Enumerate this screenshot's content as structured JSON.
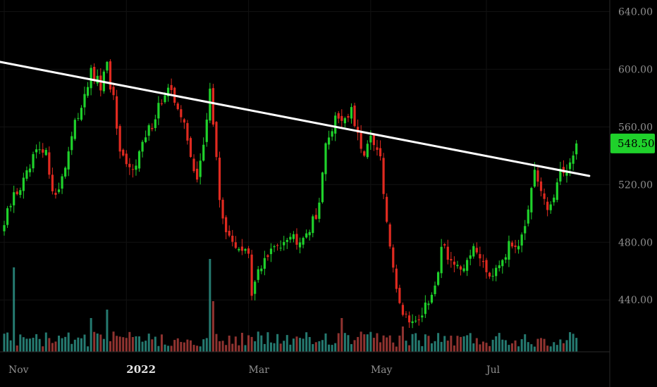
{
  "chart_data": {
    "type": "candlestick",
    "y_axis": {
      "range": [
        404,
        648
      ],
      "ticks": [
        "440.00",
        "480.00",
        "520.00",
        "560.00",
        "600.00",
        "640.00"
      ],
      "tick_values": [
        440,
        480,
        520,
        560,
        600,
        640
      ]
    },
    "x_axis": {
      "labels": [
        "Nov",
        "2022",
        "Mar",
        "May",
        "Jul"
      ],
      "label_sessions": [
        0,
        38,
        76,
        114,
        150
      ]
    },
    "last_price": 548.5,
    "last_price_label": "548.50",
    "trendline": {
      "start": [
        -3,
        605.8
      ],
      "end": [
        182,
        526
      ]
    },
    "keypoints": [
      [
        0,
        492
      ],
      [
        3,
        512
      ],
      [
        7,
        525
      ],
      [
        10,
        542
      ],
      [
        13,
        540
      ],
      [
        16,
        510
      ],
      [
        19,
        535
      ],
      [
        22,
        560
      ],
      [
        25,
        585
      ],
      [
        27,
        596
      ],
      [
        30,
        588
      ],
      [
        32,
        601
      ],
      [
        34,
        578
      ],
      [
        36,
        538
      ],
      [
        39,
        530
      ],
      [
        42,
        542
      ],
      [
        45,
        557
      ],
      [
        48,
        575
      ],
      [
        51,
        584
      ],
      [
        54,
        576
      ],
      [
        56,
        560
      ],
      [
        58,
        538
      ],
      [
        60,
        527
      ],
      [
        62,
        544
      ],
      [
        64,
        588
      ],
      [
        67,
        510
      ],
      [
        70,
        480
      ],
      [
        73,
        478
      ],
      [
        76,
        470
      ],
      [
        77,
        440
      ],
      [
        79,
        462
      ],
      [
        82,
        470
      ],
      [
        85,
        478
      ],
      [
        88,
        486
      ],
      [
        91,
        483
      ],
      [
        94,
        488
      ],
      [
        97,
        496
      ],
      [
        100,
        545
      ],
      [
        103,
        568
      ],
      [
        106,
        566
      ],
      [
        108,
        570
      ],
      [
        111,
        542
      ],
      [
        114,
        550
      ],
      [
        117,
        538
      ],
      [
        119,
        490
      ],
      [
        121,
        465
      ],
      [
        123,
        436
      ],
      [
        125,
        430
      ],
      [
        128,
        425
      ],
      [
        131,
        434
      ],
      [
        134,
        447
      ],
      [
        136,
        480
      ],
      [
        139,
        468
      ],
      [
        142,
        456
      ],
      [
        145,
        474
      ],
      [
        148,
        472
      ],
      [
        151,
        458
      ],
      [
        154,
        468
      ],
      [
        157,
        476
      ],
      [
        160,
        482
      ],
      [
        163,
        500
      ],
      [
        165,
        526
      ],
      [
        167,
        514
      ],
      [
        169,
        502
      ],
      [
        171,
        512
      ],
      [
        173,
        526
      ],
      [
        175,
        533
      ],
      [
        177,
        537
      ],
      [
        178,
        548.5
      ]
    ],
    "volume": {
      "description": "volume histogram bars along the bottom of the price pane",
      "spikes": [
        [
          3,
          5.0
        ],
        [
          27,
          2.0
        ],
        [
          32,
          2.5
        ],
        [
          64,
          5.5
        ],
        [
          65,
          3.0
        ],
        [
          105,
          2.0
        ],
        [
          124,
          1.5
        ]
      ]
    },
    "colors": {
      "up": "#1fd12b",
      "down": "#e02a20",
      "up_volume": "#2c8f84",
      "down_volume": "#a93c38",
      "trendline": "#ffffff",
      "grid": "#121212",
      "axis_divider": "#2a2a2a",
      "price_label_bg": "#1fd12b",
      "background": "#000000"
    }
  }
}
